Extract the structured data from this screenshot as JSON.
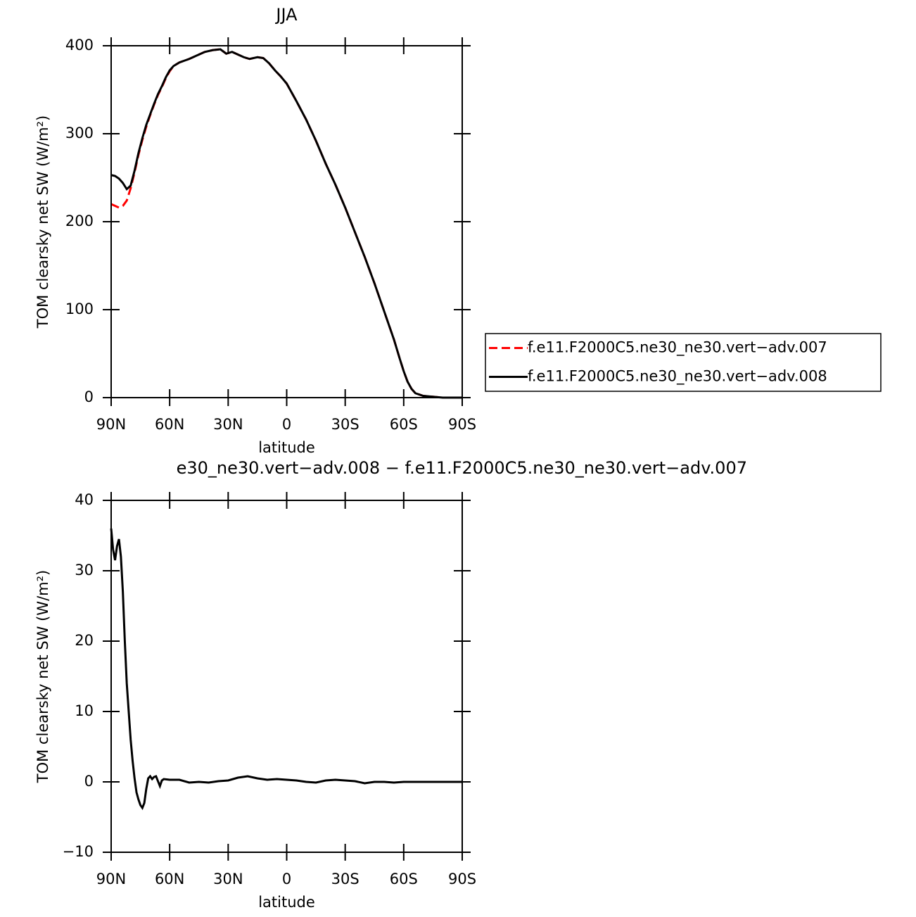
{
  "chart_data": [
    {
      "type": "line",
      "title": "JJA",
      "xlabel": "latitude",
      "ylabel": "TOM clearsky net SW (W/m²)",
      "xlim": [
        90,
        -90
      ],
      "xticks": [
        {
          "value": 90,
          "label": "90N"
        },
        {
          "value": 60,
          "label": "60N"
        },
        {
          "value": 30,
          "label": "30N"
        },
        0,
        {
          "value": -30,
          "label": "30S"
        },
        {
          "value": -60,
          "label": "60S"
        },
        {
          "value": -90,
          "label": "90S"
        }
      ],
      "ylim": [
        0,
        400
      ],
      "yticks": [
        0,
        100,
        200,
        300,
        400
      ],
      "legend": "right",
      "x": [
        90,
        88,
        86,
        84,
        82,
        80,
        78,
        76,
        74,
        72,
        70,
        68,
        66,
        64,
        62,
        60,
        58,
        55,
        50,
        45,
        42,
        38,
        34,
        31,
        28,
        25,
        22,
        19,
        15,
        12,
        9,
        6,
        3,
        0,
        -5,
        -10,
        -15,
        -20,
        -25,
        -30,
        -35,
        -40,
        -45,
        -50,
        -55,
        -58,
        -60,
        -62,
        -64,
        -66,
        -70,
        -75,
        -80,
        -85,
        -90
      ],
      "series": [
        {
          "name": "f.e11.F2000C5.ne30_ne30.vert−adv.007",
          "color": "#ff0000",
          "linestyle": "dashed",
          "values": [
            220,
            218,
            216,
            218,
            224,
            238,
            256,
            276,
            293,
            308,
            321,
            333,
            344,
            353,
            363,
            371,
            377,
            381,
            385,
            390,
            393,
            395,
            396,
            391,
            393,
            390,
            387,
            385,
            387,
            386,
            380,
            372,
            365,
            357,
            337,
            316,
            292,
            266,
            242,
            216,
            188,
            160,
            130,
            98,
            66,
            44,
            30,
            18,
            10,
            5,
            2,
            1,
            0,
            0,
            0
          ]
        },
        {
          "name": "f.e11.F2000C5.ne30_ne30.vert−adv.008",
          "color": "#000000",
          "linestyle": "solid",
          "values": [
            253,
            252,
            249,
            244,
            237,
            241,
            258,
            278,
            295,
            310,
            322,
            334,
            345,
            354,
            364,
            372,
            377,
            381,
            385,
            390,
            393,
            395,
            396,
            391,
            393,
            390,
            387,
            385,
            387,
            386,
            380,
            372,
            365,
            357,
            337,
            316,
            292,
            266,
            242,
            216,
            188,
            160,
            130,
            98,
            66,
            44,
            30,
            18,
            10,
            5,
            2,
            1,
            0,
            0,
            0
          ]
        }
      ]
    },
    {
      "type": "line",
      "title": "e30_ne30.vert−adv.008 − f.e11.F2000C5.ne30_ne30.vert−adv.007",
      "xlabel": "latitude",
      "ylabel": "TOM clearsky net SW (W/m²)",
      "xlim": [
        90,
        -90
      ],
      "xticks": [
        {
          "value": 90,
          "label": "90N"
        },
        {
          "value": 60,
          "label": "60N"
        },
        {
          "value": 30,
          "label": "30N"
        },
        0,
        {
          "value": -30,
          "label": "30S"
        },
        {
          "value": -60,
          "label": "60S"
        },
        {
          "value": -90,
          "label": "90S"
        }
      ],
      "ylim": [
        -10,
        40
      ],
      "yticks": [
        {
          "value": -10,
          "label": "−10"
        },
        0,
        10,
        20,
        30,
        40
      ],
      "x": [
        90,
        89,
        88,
        87,
        86,
        85,
        84,
        83,
        82,
        81,
        80,
        79,
        78,
        77,
        76,
        75,
        74,
        73,
        72,
        71,
        70,
        69,
        68,
        67,
        66,
        65,
        64,
        63,
        60,
        55,
        50,
        45,
        40,
        35,
        30,
        25,
        20,
        15,
        10,
        5,
        0,
        -5,
        -10,
        -15,
        -20,
        -25,
        -30,
        -35,
        -40,
        -45,
        -50,
        -55,
        -60,
        -70,
        -80,
        -90
      ],
      "series": [
        {
          "color": "#000000",
          "linestyle": "solid",
          "values": [
            36,
            33,
            31.5,
            33.5,
            34.5,
            32,
            27,
            20,
            14,
            10,
            6,
            3,
            0.5,
            -1.5,
            -2.5,
            -3.3,
            -3.7,
            -3,
            -1,
            0.5,
            0.8,
            0.4,
            0.7,
            0.8,
            0.1,
            -0.6,
            0.2,
            0.4,
            0.3,
            0.3,
            -0.1,
            0,
            -0.1,
            0.1,
            0.2,
            0.6,
            0.8,
            0.5,
            0.3,
            0.4,
            0.3,
            0.2,
            0,
            -0.1,
            0.2,
            0.3,
            0.2,
            0.1,
            -0.2,
            0,
            0,
            -0.1,
            0,
            0,
            0,
            0
          ]
        }
      ]
    }
  ]
}
